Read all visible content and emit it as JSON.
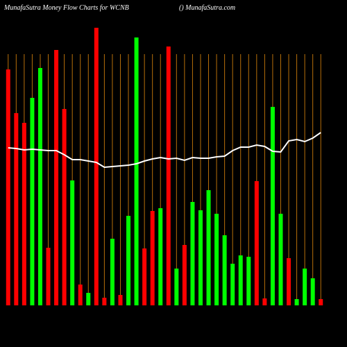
{
  "chart_data": {
    "type": "bar",
    "title": "MunafaSutra  Money Flow  Charts for WCNB",
    "subtitle": "() MunafaSutra.com",
    "categories": [
      null,
      null,
      null,
      null,
      null,
      null,
      null,
      null,
      null,
      null,
      null,
      null,
      null,
      null,
      null,
      null,
      null,
      null,
      null,
      null,
      null,
      null,
      null,
      null,
      null,
      null,
      null,
      null,
      null,
      null,
      null,
      null,
      null,
      null,
      null,
      null,
      null,
      null,
      null,
      null
    ],
    "ylim": [
      0,
      400
    ],
    "grid": true,
    "grid_color": "#b8700a",
    "series": [
      {
        "type": "bar",
        "values": [
          340,
          277,
          263,
          299,
          342,
          83,
          368,
          283,
          180,
          30,
          18,
          400,
          11,
          96,
          15,
          129,
          386,
          82,
          136,
          140,
          373,
          53,
          87,
          149,
          137,
          166,
          132,
          101,
          60,
          72,
          70,
          179,
          10,
          286,
          132,
          68,
          9,
          53,
          39,
          9
        ],
        "colors": [
          "#ff0000",
          "#ff0000",
          "#ff0000",
          "#00ff00",
          "#00ff00",
          "#ff0000",
          "#ff0000",
          "#ff0000",
          "#00ff00",
          "#ff0000",
          "#00ff00",
          "#ff0000",
          "#ff0000",
          "#00ff00",
          "#ff0000",
          "#00ff00",
          "#00ff00",
          "#ff0000",
          "#ff0000",
          "#00ff00",
          "#ff0000",
          "#00ff00",
          "#ff0000",
          "#00ff00",
          "#00ff00",
          "#00ff00",
          "#00ff00",
          "#00ff00",
          "#00ff00",
          "#00ff00",
          "#00ff00",
          "#ff0000",
          "#ff0000",
          "#00ff00",
          "#00ff00",
          "#ff0000",
          "#00ff00",
          "#00ff00",
          "#00ff00",
          "#ff0000"
        ]
      },
      {
        "type": "line",
        "color": "#ffffff",
        "values": [
          227,
          226,
          224,
          225,
          224,
          223,
          223,
          217,
          210,
          210,
          208,
          206,
          199,
          200,
          201,
          202,
          204,
          208,
          211,
          213,
          211,
          212,
          209,
          213,
          212,
          212,
          214,
          215,
          223,
          228,
          228,
          231,
          229,
          222,
          221,
          237,
          239,
          236,
          241,
          249
        ]
      }
    ]
  }
}
